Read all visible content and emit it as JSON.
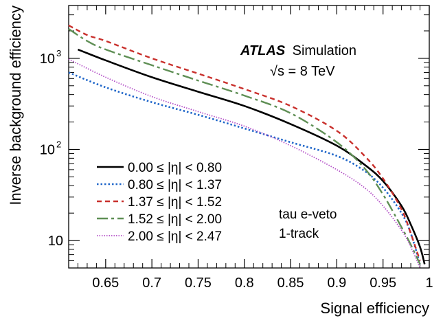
{
  "chart_data": {
    "type": "line",
    "title": "",
    "xlabel": "Signal efficiency",
    "ylabel": "Inverse background efficiency",
    "xlim": [
      0.61,
      1.0
    ],
    "ylim": [
      5,
      3800
    ],
    "yscale": "log",
    "x_ticks": [
      0.65,
      0.7,
      0.75,
      0.8,
      0.85,
      0.9,
      0.95,
      1.0
    ],
    "x_tick_labels": [
      "0.65",
      "0.7",
      "0.75",
      "0.8",
      "0.85",
      "0.9",
      "0.95",
      "1"
    ],
    "y_ticks": [
      10,
      100,
      1000
    ],
    "y_tick_labels": [
      "10",
      "10",
      "10"
    ],
    "y_tick_exponents": [
      "",
      "2",
      "3"
    ],
    "grid": false,
    "legend_position": "bottom-left",
    "annotations": {
      "experiment": "ATLAS",
      "experiment_suffix": "Simulation",
      "energy": "√s = 8 TeV",
      "label1": "tau e-veto",
      "label2": "1-track"
    },
    "series": [
      {
        "name": "0.00 ≤ |η| < 0.80",
        "color": "#000000",
        "dash": "solid",
        "x": [
          0.62,
          0.65,
          0.7,
          0.75,
          0.8,
          0.85,
          0.9,
          0.93,
          0.95,
          0.97,
          0.98,
          0.99,
          0.995
        ],
        "y": [
          1250,
          950,
          620,
          430,
          300,
          190,
          110,
          68,
          45,
          24,
          15,
          8.5,
          5.5
        ]
      },
      {
        "name": "0.80 ≤ |η| < 1.37",
        "color": "#1f66c9",
        "dash": "dotted",
        "x": [
          0.61,
          0.65,
          0.7,
          0.75,
          0.8,
          0.85,
          0.9,
          0.93,
          0.95,
          0.97,
          0.98,
          0.99
        ],
        "y": [
          700,
          480,
          330,
          240,
          170,
          120,
          85,
          58,
          38,
          20,
          12,
          5.5
        ]
      },
      {
        "name": "1.37 ≤ |η| < 1.52",
        "color": "#c9302c",
        "dash": "dashed",
        "x": [
          0.61,
          0.63,
          0.65,
          0.7,
          0.75,
          0.8,
          0.85,
          0.9,
          0.93,
          0.95,
          0.97,
          0.98,
          0.99
        ],
        "y": [
          2300,
          1800,
          1550,
          1000,
          680,
          460,
          300,
          160,
          85,
          48,
          22,
          12,
          6
        ]
      },
      {
        "name": "1.52 ≤ |η| < 2.00",
        "color": "#5f8f55",
        "dash": "dashdot",
        "x": [
          0.61,
          0.63,
          0.65,
          0.7,
          0.75,
          0.8,
          0.85,
          0.9,
          0.93,
          0.95,
          0.97,
          0.98,
          0.99
        ],
        "y": [
          2100,
          1550,
          1250,
          840,
          570,
          390,
          250,
          120,
          62,
          32,
          14,
          9,
          5.5
        ]
      },
      {
        "name": "2.00 ≤ |η| < 2.47",
        "color": "#b34fc7",
        "dash": "finedot",
        "x": [
          0.61,
          0.65,
          0.7,
          0.75,
          0.8,
          0.85,
          0.9,
          0.93,
          0.95,
          0.97,
          0.98,
          0.99
        ],
        "y": [
          980,
          620,
          380,
          260,
          180,
          110,
          60,
          38,
          24,
          13,
          8.5,
          5
        ]
      }
    ]
  }
}
